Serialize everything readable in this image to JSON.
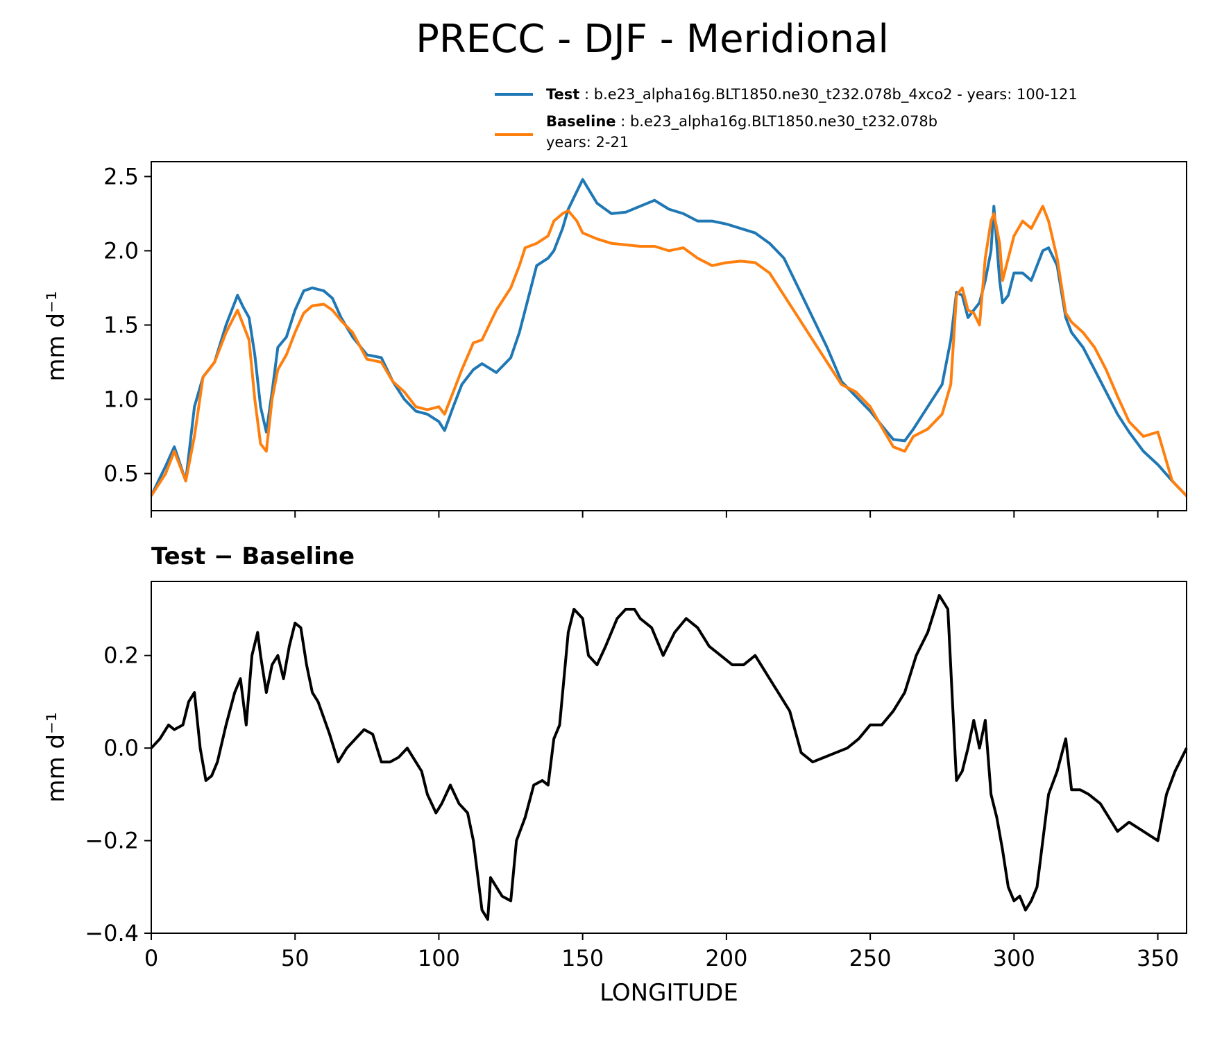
{
  "chart_data": [
    {
      "type": "line",
      "title": "PRECC - DJF - Meridional",
      "ylabel": "mm d⁻¹",
      "xlim": [
        0,
        360
      ],
      "ylim": [
        0.25,
        2.6
      ],
      "yticks": [
        "0.5",
        "1.0",
        "1.5",
        "2.0",
        "2.5"
      ],
      "legend": [
        {
          "label_bold": "Test",
          "label_rest": " : b.e23_alpha16g.BLT1850.ne30_t232.078b_4xco2 - years: 100-121",
          "label_line2": "",
          "color": "#1f77b4"
        },
        {
          "label_bold": "Baseline",
          "label_rest": " : b.e23_alpha16g.BLT1850.ne30_t232.078b",
          "label_line2": "years: 2-21",
          "color": "#ff7f0e"
        }
      ],
      "series": [
        {
          "name": "Test",
          "color": "#1f77b4",
          "x": [
            0,
            5,
            8,
            12,
            15,
            18,
            22,
            26,
            30,
            32,
            34,
            36,
            38,
            40,
            42,
            44,
            47,
            50,
            53,
            56,
            60,
            63,
            66,
            70,
            75,
            80,
            84,
            88,
            92,
            96,
            100,
            102,
            105,
            108,
            112,
            115,
            120,
            125,
            128,
            130,
            134,
            138,
            140,
            143,
            145,
            148,
            150,
            155,
            160,
            165,
            170,
            175,
            180,
            185,
            190,
            195,
            200,
            205,
            210,
            215,
            220,
            225,
            230,
            235,
            240,
            245,
            250,
            255,
            258,
            262,
            265,
            270,
            275,
            278,
            280,
            282,
            284,
            286,
            288,
            290,
            292,
            293,
            295,
            296,
            298,
            300,
            303,
            306,
            310,
            312,
            315,
            318,
            320,
            324,
            328,
            332,
            336,
            340,
            345,
            350,
            355,
            360
          ],
          "y": [
            0.35,
            0.55,
            0.68,
            0.45,
            0.95,
            1.15,
            1.25,
            1.5,
            1.7,
            1.62,
            1.55,
            1.3,
            0.95,
            0.78,
            1.05,
            1.35,
            1.42,
            1.6,
            1.73,
            1.75,
            1.73,
            1.68,
            1.55,
            1.42,
            1.3,
            1.28,
            1.12,
            1.0,
            0.92,
            0.9,
            0.85,
            0.79,
            0.95,
            1.1,
            1.2,
            1.24,
            1.18,
            1.28,
            1.45,
            1.6,
            1.9,
            1.95,
            2.0,
            2.15,
            2.28,
            2.4,
            2.48,
            2.32,
            2.25,
            2.26,
            2.3,
            2.34,
            2.28,
            2.25,
            2.2,
            2.2,
            2.18,
            2.15,
            2.12,
            2.05,
            1.95,
            1.75,
            1.55,
            1.35,
            1.12,
            1.02,
            0.92,
            0.8,
            0.73,
            0.72,
            0.8,
            0.95,
            1.1,
            1.4,
            1.72,
            1.7,
            1.55,
            1.6,
            1.65,
            1.8,
            2.0,
            2.3,
            1.8,
            1.65,
            1.7,
            1.85,
            1.85,
            1.8,
            2.0,
            2.02,
            1.9,
            1.55,
            1.45,
            1.35,
            1.2,
            1.05,
            0.9,
            0.78,
            0.65,
            0.56,
            0.45,
            0.35
          ]
        },
        {
          "name": "Baseline",
          "color": "#ff7f0e",
          "x": [
            0,
            5,
            8,
            12,
            15,
            18,
            22,
            26,
            30,
            32,
            34,
            36,
            38,
            40,
            42,
            44,
            47,
            50,
            53,
            56,
            60,
            63,
            66,
            70,
            75,
            80,
            84,
            88,
            92,
            96,
            100,
            102,
            105,
            108,
            112,
            115,
            120,
            125,
            128,
            130,
            134,
            138,
            140,
            143,
            145,
            148,
            150,
            155,
            160,
            165,
            170,
            175,
            180,
            185,
            190,
            195,
            200,
            205,
            210,
            215,
            220,
            225,
            230,
            235,
            240,
            245,
            250,
            255,
            258,
            262,
            265,
            270,
            275,
            278,
            280,
            282,
            284,
            286,
            288,
            290,
            292,
            293,
            295,
            296,
            298,
            300,
            303,
            306,
            310,
            312,
            315,
            318,
            320,
            324,
            328,
            332,
            336,
            340,
            345,
            350,
            355,
            360
          ],
          "y": [
            0.35,
            0.5,
            0.65,
            0.45,
            0.75,
            1.15,
            1.25,
            1.45,
            1.6,
            1.5,
            1.4,
            1.0,
            0.7,
            0.65,
            1.0,
            1.2,
            1.3,
            1.45,
            1.58,
            1.63,
            1.64,
            1.6,
            1.53,
            1.45,
            1.27,
            1.25,
            1.12,
            1.05,
            0.95,
            0.93,
            0.95,
            0.9,
            1.05,
            1.2,
            1.38,
            1.4,
            1.6,
            1.75,
            1.9,
            2.02,
            2.05,
            2.1,
            2.2,
            2.25,
            2.27,
            2.2,
            2.12,
            2.08,
            2.05,
            2.04,
            2.03,
            2.03,
            2.0,
            2.02,
            1.95,
            1.9,
            1.92,
            1.93,
            1.92,
            1.85,
            1.7,
            1.55,
            1.4,
            1.25,
            1.1,
            1.05,
            0.95,
            0.78,
            0.68,
            0.65,
            0.75,
            0.8,
            0.9,
            1.1,
            1.7,
            1.75,
            1.6,
            1.58,
            1.5,
            1.95,
            2.2,
            2.25,
            2.05,
            1.8,
            1.95,
            2.1,
            2.2,
            2.15,
            2.3,
            2.2,
            1.95,
            1.58,
            1.52,
            1.45,
            1.35,
            1.2,
            1.02,
            0.85,
            0.75,
            0.78,
            0.45,
            0.35
          ]
        }
      ]
    },
    {
      "type": "line",
      "title": "Test − Baseline",
      "xlabel": "LONGITUDE",
      "ylabel": "mm d⁻¹",
      "xlim": [
        0,
        360
      ],
      "ylim": [
        -0.4,
        0.36
      ],
      "xticks": [
        "0",
        "50",
        "100",
        "150",
        "200",
        "250",
        "300",
        "350"
      ],
      "yticks": [
        "−0.4",
        "−0.2",
        "0.0",
        "0.2"
      ],
      "series": [
        {
          "name": "Test − Baseline",
          "color": "#000000",
          "x": [
            0,
            3,
            6,
            8,
            11,
            13,
            15,
            17,
            19,
            21,
            23,
            26,
            29,
            31,
            33,
            35,
            37,
            38,
            40,
            42,
            44,
            46,
            48,
            50,
            52,
            54,
            56,
            58,
            62,
            65,
            68,
            71,
            74,
            77,
            80,
            83,
            86,
            89,
            92,
            94,
            96,
            99,
            101,
            104,
            107,
            110,
            112,
            115,
            117,
            118,
            120,
            122,
            125,
            127,
            130,
            133,
            136,
            138,
            140,
            142,
            145,
            147,
            150,
            152,
            155,
            158,
            162,
            165,
            168,
            170,
            174,
            178,
            182,
            186,
            190,
            194,
            198,
            202,
            206,
            210,
            214,
            218,
            222,
            226,
            230,
            234,
            238,
            242,
            246,
            250,
            254,
            258,
            262,
            266,
            270,
            274,
            277,
            279,
            280,
            282,
            284,
            286,
            288,
            290,
            292,
            294,
            296,
            298,
            300,
            302,
            304,
            306,
            308,
            312,
            315,
            318,
            320,
            323,
            326,
            330,
            333,
            336,
            340,
            345,
            350,
            353,
            356,
            360
          ],
          "y": [
            0.0,
            0.02,
            0.05,
            0.04,
            0.05,
            0.1,
            0.12,
            0.0,
            -0.07,
            -0.06,
            -0.03,
            0.05,
            0.12,
            0.15,
            0.05,
            0.2,
            0.25,
            0.2,
            0.12,
            0.18,
            0.2,
            0.15,
            0.22,
            0.27,
            0.26,
            0.18,
            0.12,
            0.1,
            0.03,
            -0.03,
            0.0,
            0.02,
            0.04,
            0.03,
            -0.03,
            -0.03,
            -0.02,
            0.0,
            -0.03,
            -0.05,
            -0.1,
            -0.14,
            -0.12,
            -0.08,
            -0.12,
            -0.14,
            -0.2,
            -0.35,
            -0.37,
            -0.28,
            -0.3,
            -0.32,
            -0.33,
            -0.2,
            -0.15,
            -0.08,
            -0.07,
            -0.08,
            0.02,
            0.05,
            0.25,
            0.3,
            0.28,
            0.2,
            0.18,
            0.22,
            0.28,
            0.3,
            0.3,
            0.28,
            0.26,
            0.2,
            0.25,
            0.28,
            0.26,
            0.22,
            0.2,
            0.18,
            0.18,
            0.2,
            0.16,
            0.12,
            0.08,
            -0.01,
            -0.03,
            -0.02,
            -0.01,
            0.0,
            0.02,
            0.05,
            0.05,
            0.08,
            0.12,
            0.2,
            0.25,
            0.33,
            0.3,
            0.05,
            -0.07,
            -0.05,
            0.0,
            0.06,
            0.0,
            0.06,
            -0.1,
            -0.15,
            -0.22,
            -0.3,
            -0.33,
            -0.32,
            -0.35,
            -0.33,
            -0.3,
            -0.1,
            -0.05,
            0.02,
            -0.09,
            -0.09,
            -0.1,
            -0.12,
            -0.15,
            -0.18,
            -0.16,
            -0.18,
            -0.2,
            -0.1,
            -0.05,
            0.0
          ]
        }
      ]
    }
  ]
}
